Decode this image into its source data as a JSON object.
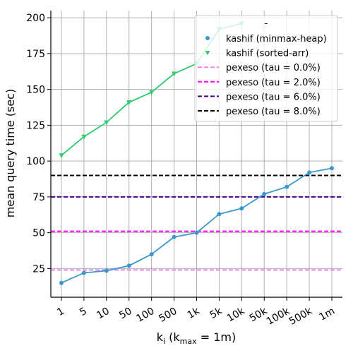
{
  "chart_data": {
    "type": "line",
    "title": "",
    "xlabel": {
      "base": "k",
      "sub": "i",
      "paren_open": " (k",
      "max_sub": "max",
      "rest": " =  1m)"
    },
    "ylabel": "mean query time (sec)",
    "categories": [
      "1",
      "5",
      "10",
      "50",
      "100",
      "500",
      "1k",
      "5k",
      "10k",
      "50k",
      "100k",
      "500k",
      "1m"
    ],
    "ylim": [
      5,
      205
    ],
    "yticks": [
      25,
      50,
      75,
      100,
      125,
      150,
      175,
      200
    ],
    "grid": true,
    "legend_position": "top-right",
    "legend_title": "-",
    "series": [
      {
        "name": "kashif (minmax-heap)",
        "color": "#3a98cc",
        "marker": "circle",
        "values": [
          15,
          22,
          23.5,
          27,
          35,
          47,
          50,
          63,
          67,
          77,
          82,
          92,
          95
        ]
      },
      {
        "name": "kashif (sorted-arr)",
        "color": "#2ecc71",
        "marker": "triangle-down",
        "values": [
          104,
          117,
          127,
          141,
          148,
          161,
          168,
          192,
          196,
          null,
          null,
          null,
          null
        ]
      }
    ],
    "hlines": [
      {
        "name": "pexeso (tau = 0.0%)",
        "color": "#ee82ee",
        "value": 24
      },
      {
        "name": "pexeso (tau = 2.0%)",
        "color": "#ff00ff",
        "value": 51
      },
      {
        "name": "pexeso (tau = 6.0%)",
        "color": "#4b0082",
        "value": 75
      },
      {
        "name": "pexeso (tau = 8.0%)",
        "color": "#000000",
        "value": 90
      }
    ]
  }
}
